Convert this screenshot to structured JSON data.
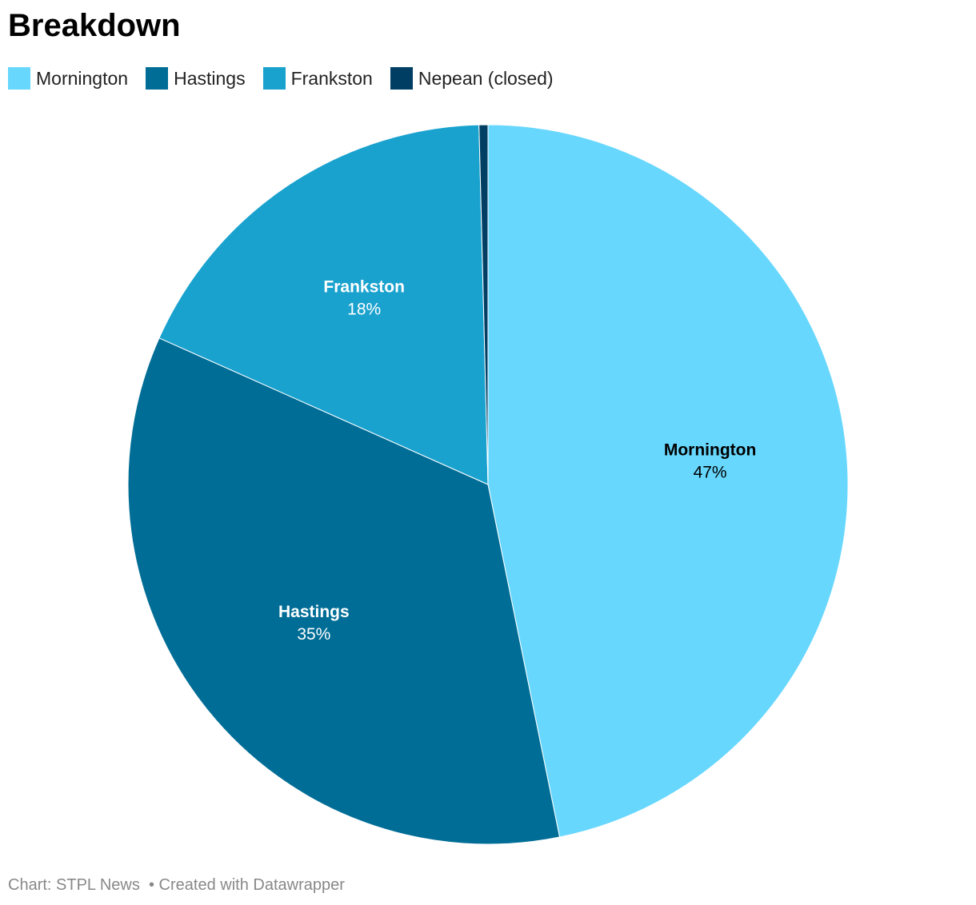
{
  "chart_data": {
    "type": "pie",
    "title": "Breakdown",
    "categories": [
      "Mornington",
      "Hastings",
      "Frankston",
      "Nepean (closed)"
    ],
    "values": [
      47,
      35,
      18,
      0.4
    ],
    "value_labels": [
      "47%",
      "35%",
      "18%",
      null
    ],
    "colors": [
      "#68d7fd",
      "#006d96",
      "#1aa2cf",
      "#003f63"
    ],
    "label_colors": [
      "#000000",
      "#ffffff",
      "#ffffff",
      "#ffffff"
    ],
    "source": "Chart: STPL News",
    "credit": "• Created with Datawrapper"
  }
}
